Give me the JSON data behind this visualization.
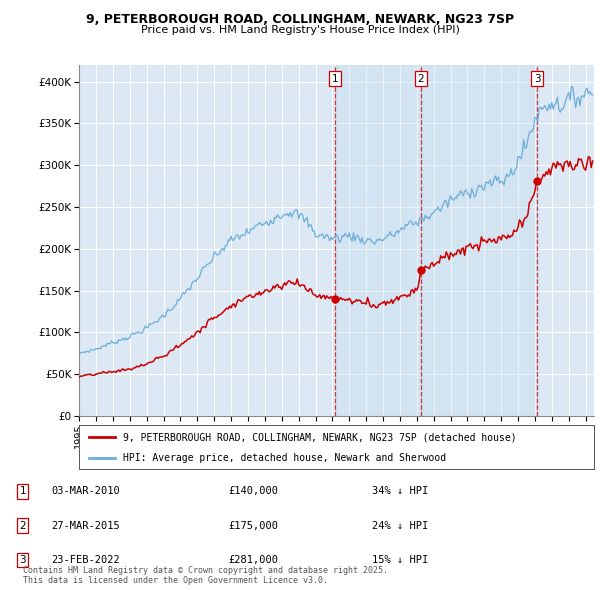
{
  "title_line1": "9, PETERBOROUGH ROAD, COLLINGHAM, NEWARK, NG23 7SP",
  "title_line2": "Price paid vs. HM Land Registry's House Price Index (HPI)",
  "hpi_color": "#6baed6",
  "price_color": "#cc0000",
  "bg_color": "#dce9f5",
  "shade_color": "#cce0f0",
  "sale_year_nums": [
    2010.167,
    2015.25,
    2022.125
  ],
  "sale_prices": [
    140000,
    175000,
    281000
  ],
  "sale_labels": [
    "1",
    "2",
    "3"
  ],
  "sale_info": [
    [
      "1",
      "03-MAR-2010",
      "£140,000",
      "34% ↓ HPI"
    ],
    [
      "2",
      "27-MAR-2015",
      "£175,000",
      "24% ↓ HPI"
    ],
    [
      "3",
      "23-FEB-2022",
      "£281,000",
      "15% ↓ HPI"
    ]
  ],
  "legend_line1": "9, PETERBOROUGH ROAD, COLLINGHAM, NEWARK, NG23 7SP (detached house)",
  "legend_line2": "HPI: Average price, detached house, Newark and Sherwood",
  "footer": "Contains HM Land Registry data © Crown copyright and database right 2025.\nThis data is licensed under the Open Government Licence v3.0.",
  "ylim": [
    0,
    420000
  ],
  "yticks": [
    0,
    50000,
    100000,
    150000,
    200000,
    250000,
    300000,
    350000,
    400000
  ],
  "ytick_labels": [
    "£0",
    "£50K",
    "£100K",
    "£150K",
    "£200K",
    "£250K",
    "£300K",
    "£350K",
    "£400K"
  ],
  "start_year": 1995,
  "end_year": 2025
}
